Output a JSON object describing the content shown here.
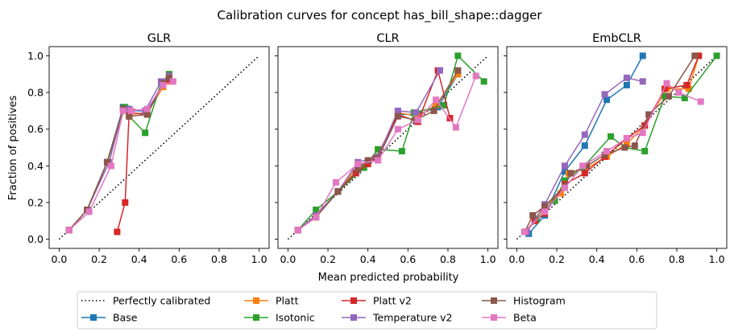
{
  "figure": {
    "title": "Calibration curves for concept has_bill_shape::dagger",
    "xlabel": "Mean predicted probability",
    "ylabel": "Fraction of positives"
  },
  "legend": {
    "placement": "bottom-center",
    "entries": [
      {
        "label": "Perfectly calibrated",
        "color": "#000000",
        "style": "dotted",
        "marker": "none"
      },
      {
        "label": "Base",
        "color": "#1f77b4",
        "style": "solid",
        "marker": "square"
      },
      {
        "label": "Platt",
        "color": "#ff7f0e",
        "style": "solid",
        "marker": "square"
      },
      {
        "label": "Isotonic",
        "color": "#2ca02c",
        "style": "solid",
        "marker": "square"
      },
      {
        "label": "Platt v2",
        "color": "#d62728",
        "style": "solid",
        "marker": "square"
      },
      {
        "label": "Temperature v2",
        "color": "#9467bd",
        "style": "solid",
        "marker": "square"
      },
      {
        "label": "Histogram",
        "color": "#8c564b",
        "style": "solid",
        "marker": "square"
      },
      {
        "label": "Beta",
        "color": "#e377c2",
        "style": "solid",
        "marker": "square"
      }
    ]
  },
  "chart_data": [
    {
      "type": "line",
      "title": "GLR",
      "xlim": [
        -0.05,
        1.05
      ],
      "ylim": [
        -0.05,
        1.05
      ],
      "xticks": [
        0.0,
        0.2,
        0.4,
        0.6,
        0.8,
        1.0
      ],
      "yticks": [
        0.0,
        0.2,
        0.4,
        0.6,
        0.8,
        1.0
      ],
      "xticklabels": [
        "0.0",
        "0.2",
        "0.4",
        "0.6",
        "0.8",
        "1.0"
      ],
      "yticklabels": [
        "0.0",
        "0.2",
        "0.4",
        "0.6",
        "0.8",
        "1.0"
      ],
      "grid": false,
      "series": [
        {
          "name": "Perfectly calibrated",
          "x": [
            0,
            1
          ],
          "y": [
            0,
            1
          ]
        },
        {
          "name": "Base",
          "x": [
            0.05,
            0.14,
            0.24,
            0.32,
            0.35,
            0.44,
            0.52,
            0.55
          ],
          "y": [
            0.05,
            0.16,
            0.42,
            0.72,
            0.7,
            0.7,
            0.85,
            0.89
          ]
        },
        {
          "name": "Platt",
          "x": [
            0.05,
            0.14,
            0.24,
            0.32,
            0.35,
            0.44,
            0.52,
            0.55
          ],
          "y": [
            0.05,
            0.16,
            0.42,
            0.71,
            0.68,
            0.69,
            0.83,
            0.86
          ]
        },
        {
          "name": "Isotonic",
          "x": [
            0.05,
            0.14,
            0.24,
            0.33,
            0.35,
            0.43,
            0.51,
            0.55
          ],
          "y": [
            0.05,
            0.16,
            0.42,
            0.72,
            0.67,
            0.58,
            0.85,
            0.9
          ]
        },
        {
          "name": "Platt v2",
          "x": [
            0.29,
            0.33,
            0.35,
            0.44,
            0.52,
            0.55
          ],
          "y": [
            0.04,
            0.2,
            0.69,
            0.68,
            0.85,
            0.87
          ]
        },
        {
          "name": "Temperature v2",
          "x": [
            0.05,
            0.14,
            0.25,
            0.32,
            0.35,
            0.43,
            0.51,
            0.55
          ],
          "y": [
            0.05,
            0.16,
            0.42,
            0.71,
            0.71,
            0.7,
            0.86,
            0.89
          ]
        },
        {
          "name": "Histogram",
          "x": [
            0.05,
            0.14,
            0.24,
            0.32,
            0.35,
            0.44,
            0.52,
            0.55
          ],
          "y": [
            0.05,
            0.16,
            0.42,
            0.71,
            0.67,
            0.68,
            0.85,
            0.88
          ]
        },
        {
          "name": "Beta",
          "x": [
            0.05,
            0.15,
            0.26,
            0.32,
            0.36,
            0.44,
            0.52,
            0.57
          ],
          "y": [
            0.05,
            0.15,
            0.4,
            0.7,
            0.7,
            0.71,
            0.84,
            0.86
          ]
        }
      ]
    },
    {
      "type": "line",
      "title": "CLR",
      "xlim": [
        -0.05,
        1.05
      ],
      "ylim": [
        -0.05,
        1.05
      ],
      "xticks": [
        0.0,
        0.2,
        0.4,
        0.6,
        0.8,
        1.0
      ],
      "yticks": [
        0.0,
        0.2,
        0.4,
        0.6,
        0.8,
        1.0
      ],
      "xticklabels": [
        "0.0",
        "0.2",
        "0.4",
        "0.6",
        "0.8",
        "1.0"
      ],
      "yticklabels": [],
      "grid": false,
      "series": [
        {
          "name": "Perfectly calibrated",
          "x": [
            0,
            1
          ],
          "y": [
            0,
            1
          ]
        },
        {
          "name": "Base",
          "x": [
            0.05,
            0.14,
            0.25,
            0.35,
            0.45,
            0.55,
            0.65,
            0.75,
            0.85
          ],
          "y": [
            0.05,
            0.13,
            0.26,
            0.4,
            0.45,
            0.68,
            0.68,
            0.72,
            0.9
          ]
        },
        {
          "name": "Platt",
          "x": [
            0.05,
            0.14,
            0.25,
            0.35,
            0.45,
            0.55,
            0.65,
            0.74,
            0.85
          ],
          "y": [
            0.05,
            0.13,
            0.26,
            0.4,
            0.45,
            0.69,
            0.67,
            0.73,
            0.9
          ]
        },
        {
          "name": "Isotonic",
          "x": [
            0.05,
            0.14,
            0.25,
            0.38,
            0.45,
            0.57,
            0.63,
            0.78,
            0.85,
            0.98
          ],
          "y": [
            0.05,
            0.16,
            0.26,
            0.39,
            0.49,
            0.48,
            0.69,
            0.73,
            1.0,
            0.86
          ]
        },
        {
          "name": "Platt v2",
          "x": [
            0.05,
            0.14,
            0.25,
            0.34,
            0.4,
            0.44,
            0.55,
            0.65,
            0.75,
            0.81
          ],
          "y": [
            0.05,
            0.12,
            0.26,
            0.36,
            0.41,
            0.44,
            0.68,
            0.64,
            0.92,
            0.66
          ]
        },
        {
          "name": "Temperature v2",
          "x": [
            0.05,
            0.14,
            0.25,
            0.35,
            0.45,
            0.55,
            0.64,
            0.76
          ],
          "y": [
            0.05,
            0.13,
            0.26,
            0.42,
            0.45,
            0.7,
            0.69,
            0.92
          ]
        },
        {
          "name": "Histogram",
          "x": [
            0.05,
            0.14,
            0.25,
            0.35,
            0.4,
            0.45,
            0.55,
            0.64,
            0.73,
            0.85
          ],
          "y": [
            0.05,
            0.12,
            0.26,
            0.38,
            0.43,
            0.44,
            0.67,
            0.65,
            0.7,
            0.92
          ]
        },
        {
          "name": "Beta",
          "x": [
            0.05,
            0.14,
            0.24,
            0.35,
            0.45,
            0.55,
            0.65,
            0.74,
            0.84,
            0.94
          ],
          "y": [
            0.05,
            0.12,
            0.31,
            0.41,
            0.43,
            0.6,
            0.65,
            0.76,
            0.61,
            0.89
          ]
        }
      ]
    },
    {
      "type": "line",
      "title": "EmbCLR",
      "xlim": [
        -0.05,
        1.05
      ],
      "ylim": [
        -0.05,
        1.05
      ],
      "xticks": [
        0.0,
        0.2,
        0.4,
        0.6,
        0.8,
        1.0
      ],
      "yticks": [
        0.0,
        0.2,
        0.4,
        0.6,
        0.8,
        1.0
      ],
      "xticklabels": [
        "0.0",
        "0.2",
        "0.4",
        "0.6",
        "0.8",
        "1.0"
      ],
      "yticklabels": [],
      "grid": false,
      "series": [
        {
          "name": "Perfectly calibrated",
          "x": [
            0,
            1
          ],
          "y": [
            0,
            1
          ]
        },
        {
          "name": "Base",
          "x": [
            0.06,
            0.14,
            0.24,
            0.34,
            0.45,
            0.55,
            0.63
          ],
          "y": [
            0.03,
            0.13,
            0.37,
            0.51,
            0.76,
            0.84,
            1.0
          ]
        },
        {
          "name": "Platt",
          "x": [
            0.04,
            0.09,
            0.14,
            0.22,
            0.26,
            0.34,
            0.45,
            0.55,
            0.64,
            0.75,
            0.86,
            0.91
          ],
          "y": [
            0.04,
            0.1,
            0.18,
            0.25,
            0.36,
            0.38,
            0.45,
            0.52,
            0.62,
            0.82,
            0.82,
            1.0
          ]
        },
        {
          "name": "Isotonic",
          "x": [
            0.04,
            0.1,
            0.19,
            0.24,
            0.33,
            0.47,
            0.54,
            0.64,
            0.74,
            0.84,
            1.0
          ],
          "y": [
            0.04,
            0.11,
            0.21,
            0.32,
            0.39,
            0.56,
            0.5,
            0.48,
            0.78,
            0.77,
            1.0
          ]
        },
        {
          "name": "Platt v2",
          "x": [
            0.04,
            0.09,
            0.14,
            0.24,
            0.34,
            0.44,
            0.55,
            0.64,
            0.74,
            0.85,
            0.91
          ],
          "y": [
            0.04,
            0.1,
            0.14,
            0.3,
            0.36,
            0.45,
            0.55,
            0.62,
            0.82,
            0.84,
            1.0
          ]
        },
        {
          "name": "Temperature v2",
          "x": [
            0.05,
            0.14,
            0.24,
            0.34,
            0.44,
            0.55,
            0.63
          ],
          "y": [
            0.04,
            0.19,
            0.4,
            0.57,
            0.79,
            0.88,
            0.86
          ]
        },
        {
          "name": "Histogram",
          "x": [
            0.04,
            0.08,
            0.14,
            0.24,
            0.27,
            0.35,
            0.44,
            0.54,
            0.59,
            0.66,
            0.76,
            0.89
          ],
          "y": [
            0.04,
            0.13,
            0.18,
            0.29,
            0.36,
            0.4,
            0.46,
            0.5,
            0.51,
            0.68,
            0.78,
            1.0
          ]
        },
        {
          "name": "Beta",
          "x": [
            0.04,
            0.14,
            0.24,
            0.33,
            0.45,
            0.55,
            0.63,
            0.75,
            0.81,
            0.92
          ],
          "y": [
            0.04,
            0.15,
            0.28,
            0.4,
            0.48,
            0.55,
            0.58,
            0.85,
            0.8,
            0.75
          ]
        }
      ]
    }
  ]
}
